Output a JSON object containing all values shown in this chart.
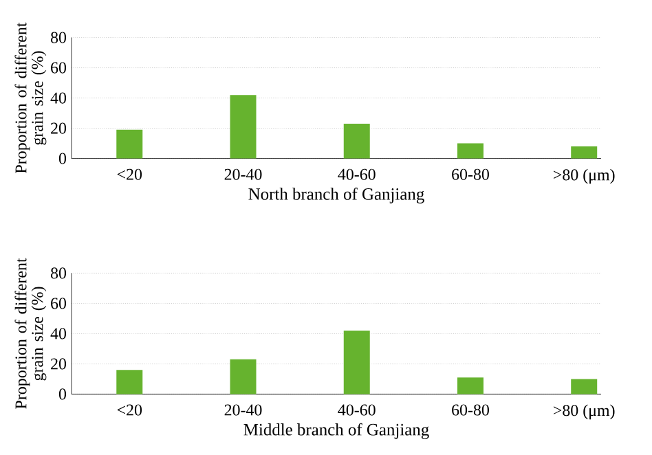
{
  "chart_data": [
    {
      "type": "bar",
      "categories": [
        "<20",
        "20-40",
        "40-60",
        "60-80",
        ">80 (μm)"
      ],
      "values": [
        19,
        42,
        23,
        10,
        8
      ],
      "color": "#66b32e",
      "xlabel": "North branch of Ganjiang",
      "ylabel": "Proportion of different grain size (%)",
      "ylim": [
        0,
        80
      ],
      "yticks": [
        0,
        20,
        40,
        60,
        80
      ],
      "grid": "y"
    },
    {
      "type": "bar",
      "categories": [
        "<20",
        "20-40",
        "40-60",
        "60-80",
        ">80 (μm)"
      ],
      "values": [
        16,
        23,
        42,
        11,
        10
      ],
      "color": "#66b32e",
      "xlabel": "Middle branch of Ganjiang",
      "ylabel": "Proportion of different grain size (%)",
      "ylim": [
        0,
        80
      ],
      "yticks": [
        0,
        20,
        40,
        60,
        80
      ],
      "grid": "y"
    }
  ]
}
